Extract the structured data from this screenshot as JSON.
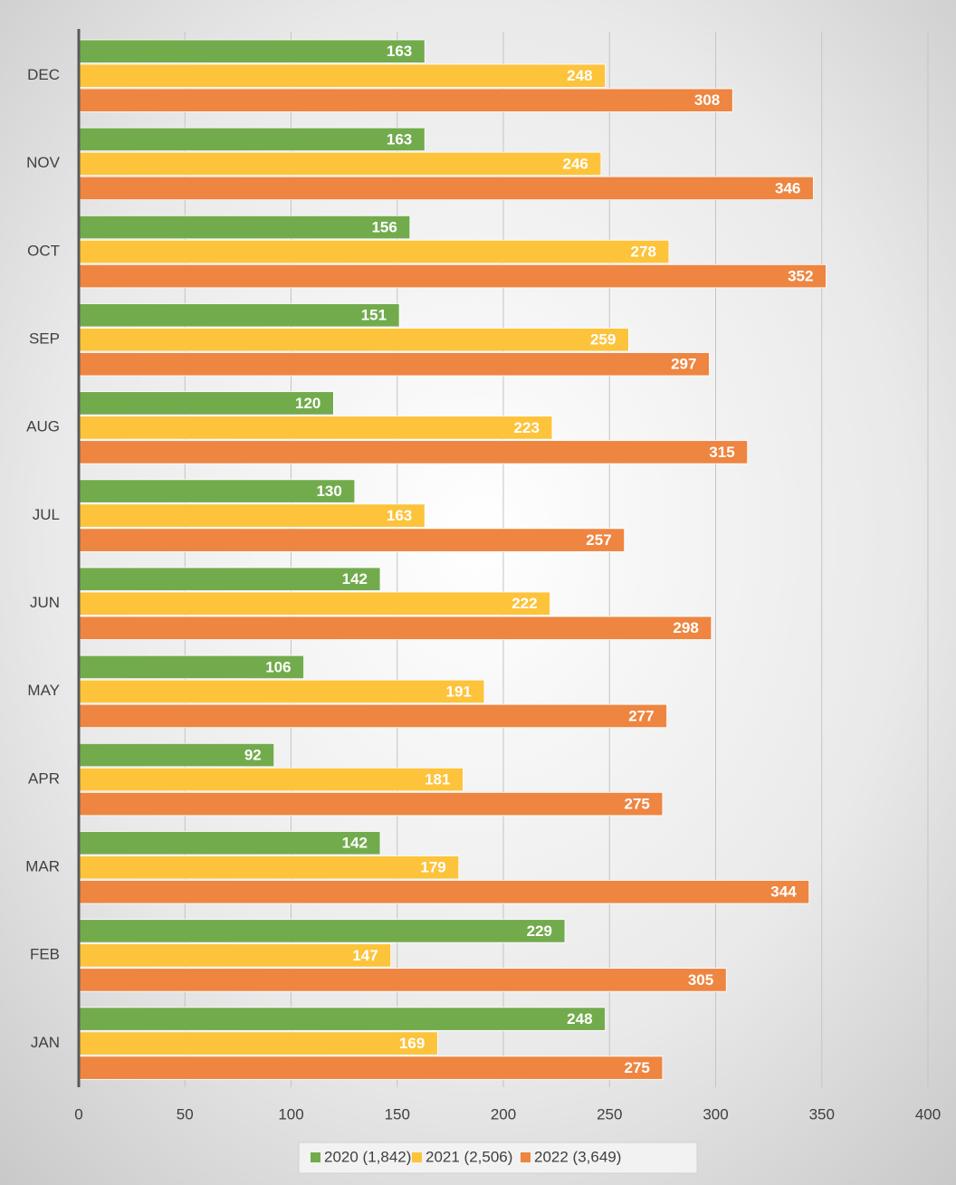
{
  "chart_data": {
    "type": "bar",
    "orientation": "horizontal",
    "categories": [
      "JAN",
      "FEB",
      "MAR",
      "APR",
      "MAY",
      "JUN",
      "JUL",
      "AUG",
      "SEP",
      "OCT",
      "NOV",
      "DEC"
    ],
    "series": [
      {
        "name": "2020 (1,842)",
        "color": "#72ab4c",
        "values": [
          248,
          229,
          142,
          92,
          106,
          142,
          130,
          120,
          151,
          156,
          163,
          163
        ]
      },
      {
        "name": "2021 (2,506)",
        "color": "#fcc33b",
        "values": [
          169,
          147,
          179,
          181,
          191,
          222,
          163,
          223,
          259,
          278,
          246,
          248
        ]
      },
      {
        "name": "2022 (3,649)",
        "color": "#ee8540",
        "values": [
          275,
          305,
          344,
          275,
          277,
          298,
          257,
          315,
          297,
          352,
          346,
          308
        ]
      }
    ],
    "xlim": [
      0,
      400
    ],
    "xticks": [
      0,
      50,
      100,
      150,
      200,
      250,
      300,
      350,
      400
    ],
    "grid": true,
    "legend": "bottom"
  }
}
